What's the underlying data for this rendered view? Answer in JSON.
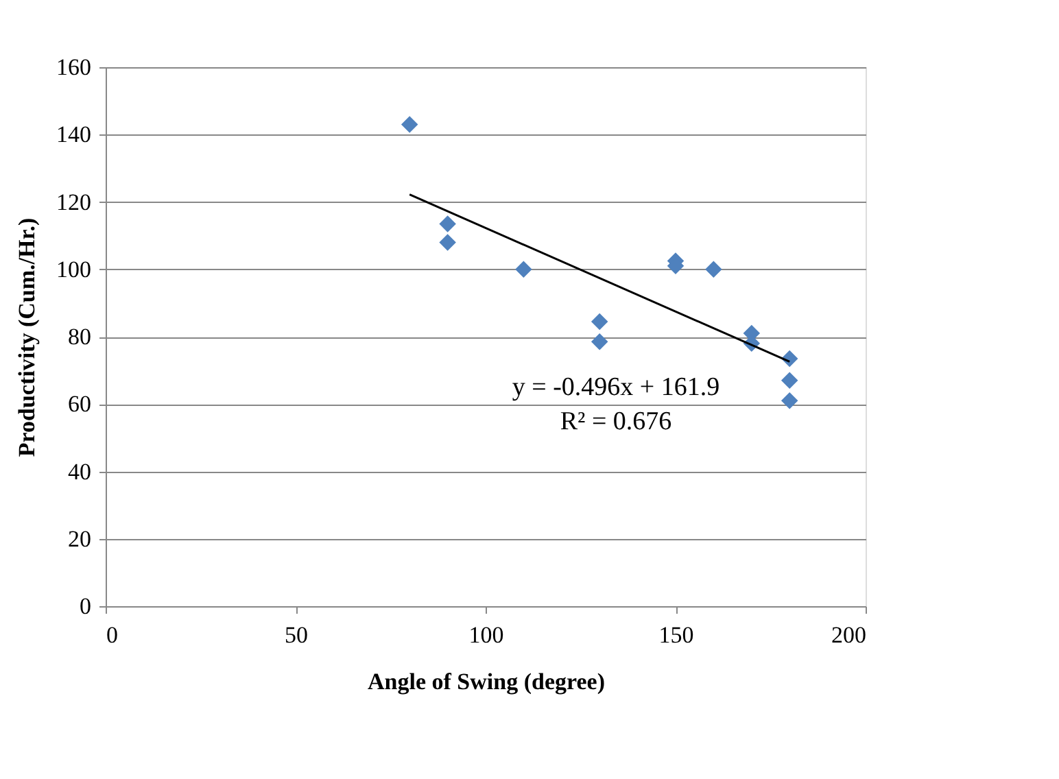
{
  "chart_data": {
    "type": "scatter",
    "xlabel": "Angle of Swing (degree)",
    "ylabel": "Productivity (Cum./Hr.)",
    "xlim": [
      0,
      200
    ],
    "xticks": [
      0,
      50,
      100,
      150,
      200
    ],
    "ylim": [
      0,
      160
    ],
    "yticks": [
      0,
      20,
      40,
      60,
      80,
      100,
      120,
      140,
      160
    ],
    "grid": "y",
    "series": [
      {
        "marker": "diamond",
        "color": "#4f81bd",
        "x": [
          80,
          90,
          90,
          110,
          130,
          130,
          150,
          150,
          160,
          170,
          170,
          180,
          180,
          180
        ],
        "values": [
          143,
          113.5,
          108,
          100,
          84.5,
          78.5,
          102.5,
          101,
          100,
          81,
          78,
          73.5,
          67,
          61
        ]
      },
      {
        "type": "line",
        "marker": "none",
        "line_style": "solid",
        "color": "#000000",
        "x": [
          80,
          180
        ],
        "values": [
          122.2,
          72.6
        ]
      }
    ],
    "annotations": [
      "y = -0.496x + 161.9",
      "R² = 0.676"
    ]
  }
}
